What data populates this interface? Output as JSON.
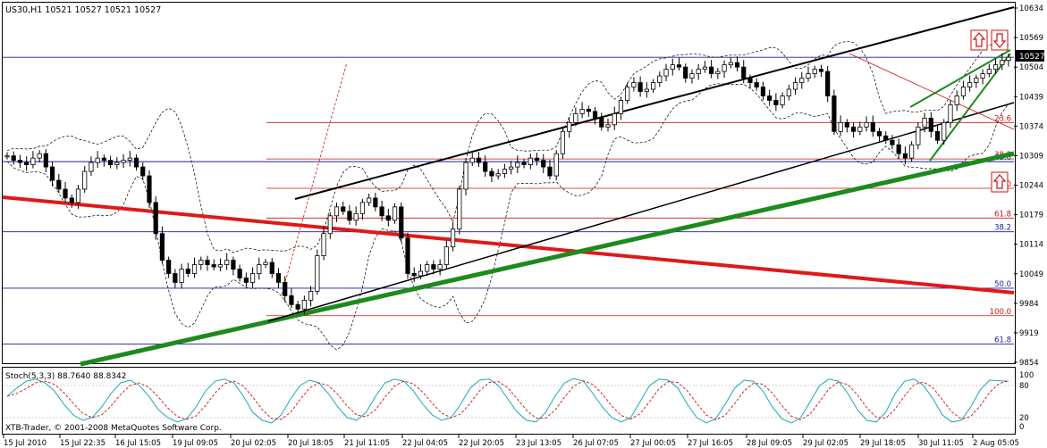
{
  "chart_data": {
    "type": "candlestick",
    "symbol_header": "US30,H1  10521 10527 10521 10527",
    "last_price": "10527",
    "y_ticks": [
      "10634",
      "10569",
      "10504",
      "10439",
      "10374",
      "10309",
      "10244",
      "10179",
      "10114",
      "10049",
      "9984",
      "9919",
      "9854"
    ],
    "x_ticks": [
      "15 Jul 2010",
      "15 Jul 22:35",
      "16 Jul 15:05",
      "19 Jul 09:05",
      "20 Jul 02:05",
      "20 Jul 18:05",
      "21 Jul 11:05",
      "22 Jul 04:05",
      "22 Jul 20:05",
      "23 Jul 13:05",
      "26 Jul 07:05",
      "27 Jul 00:05",
      "27 Jul 16:05",
      "28 Jul 09:05",
      "29 Jul 02:05",
      "29 Jul 18:05",
      "30 Jul 11:05",
      "2 Aug 05:05"
    ],
    "ylim": [
      9840,
      10650
    ],
    "fib_red": [
      {
        "label": "23.6",
        "value": 10380
      },
      {
        "label": "38.2",
        "value": 10298
      },
      {
        "label": "50.0",
        "value": 10232
      },
      {
        "label": "61.8",
        "value": 10165
      },
      {
        "label": "100.0",
        "value": 9945
      }
    ],
    "fib_blue": [
      {
        "label": "23.6",
        "value": 10292
      },
      {
        "label": "38.2",
        "value": 10134
      },
      {
        "label": "50.0",
        "value": 10007
      },
      {
        "label": "61.8",
        "value": 9881
      }
    ],
    "blue_level_top": 10527,
    "candles_close": [
      10305,
      10295,
      10290,
      10285,
      10300,
      10310,
      10280,
      10250,
      10230,
      10210,
      10200,
      10230,
      10270,
      10290,
      10300,
      10295,
      10285,
      10290,
      10295,
      10300,
      10280,
      10260,
      10200,
      10130,
      10070,
      10040,
      10020,
      10050,
      10040,
      10060,
      10070,
      10060,
      10055,
      10060,
      10070,
      10050,
      10030,
      10020,
      10040,
      10060,
      10065,
      10040,
      10020,
      9990,
      9970,
      9960,
      9980,
      10000,
      10080,
      10130,
      10170,
      10190,
      10180,
      10160,
      10175,
      10200,
      10210,
      10190,
      10170,
      10160,
      10190,
      10120,
      10040,
      10035,
      10045,
      10060,
      10050,
      10060,
      10100,
      10140,
      10230,
      10290,
      10300,
      10290,
      10270,
      10260,
      10265,
      10275,
      10280,
      10290,
      10285,
      10300,
      10295,
      10280,
      10260,
      10310,
      10360,
      10380,
      10400,
      10410,
      10405,
      10390,
      10370,
      10375,
      10400,
      10430,
      10460,
      10470,
      10450,
      10455,
      10470,
      10485,
      10500,
      10510,
      10505,
      10480,
      10490,
      10500,
      10505,
      10490,
      10495,
      10510,
      10515,
      10505,
      10480,
      10470,
      10460,
      10440,
      10430,
      10420,
      10440,
      10455,
      10470,
      10480,
      10490,
      10500,
      10495,
      10440,
      10360,
      10380,
      10370,
      10360,
      10370,
      10380,
      10360,
      10350,
      10340,
      10330,
      10310,
      10300,
      10330,
      10370,
      10390,
      10360,
      10340,
      10380,
      10420,
      10440,
      10460,
      10470,
      10480,
      10490,
      10500,
      10510,
      10520,
      10527
    ],
    "stochastic": {
      "label": "Stoch(5,3,3) 88.7640 88.8342",
      "levels": [
        "100",
        "80",
        "20",
        "0"
      ],
      "main": [
        60,
        75,
        88,
        92,
        85,
        70,
        45,
        25,
        15,
        20,
        40,
        65,
        85,
        90,
        80,
        60,
        35,
        20,
        12,
        18,
        40,
        70,
        88,
        92,
        85,
        60,
        30,
        15,
        10,
        25,
        55,
        80,
        90,
        85,
        65,
        40,
        20,
        15,
        30,
        60,
        85,
        92,
        88,
        70,
        45,
        25,
        15,
        20,
        45,
        75,
        90,
        92,
        80,
        55,
        30,
        15,
        12,
        30,
        60,
        85,
        93,
        88,
        65,
        40,
        20,
        12,
        20,
        50,
        80,
        92,
        90,
        75,
        45,
        20,
        10,
        18,
        45,
        75,
        90,
        88,
        70,
        40,
        18,
        10,
        20,
        50,
        80,
        92,
        88,
        65,
        35,
        15,
        12,
        30,
        65,
        88,
        92,
        80,
        55,
        25,
        12,
        15,
        40,
        72,
        90,
        89,
        88
      ]
    },
    "copyright": "XTB-Trader, © 2001-2008 MetaQuotes Software Corp.",
    "box_label": "10527"
  }
}
